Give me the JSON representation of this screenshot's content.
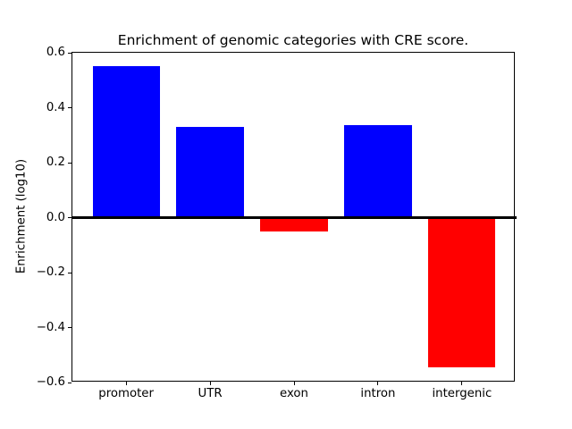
{
  "figure": {
    "background": "#ffffff"
  },
  "chart_data": {
    "type": "bar",
    "title": "Enrichment of genomic categories with CRE score.",
    "xlabel": "",
    "ylabel": "Enrichment (log10)",
    "categories": [
      "promoter",
      "UTR",
      "exon",
      "intron",
      "intergenic"
    ],
    "values": [
      0.55,
      0.33,
      -0.05,
      0.335,
      -0.545
    ],
    "bar_colors": [
      "#0000ff",
      "#0000ff",
      "#ff0000",
      "#0000ff",
      "#ff0000"
    ],
    "positive_color": "#0000ff",
    "negative_color": "#ff0000",
    "ylim": [
      -0.6,
      0.6
    ],
    "yticks": [
      0.6,
      0.4,
      0.2,
      0.0,
      -0.2,
      -0.4,
      -0.6
    ],
    "ytick_labels": [
      "0.6",
      "0.4",
      "0.2",
      "0.0",
      "−0.2",
      "−0.4",
      "−0.6"
    ],
    "bar_width_fraction": 0.8,
    "x_margin": 0.64,
    "grid": false,
    "legend": "none",
    "zero_line": true,
    "zero_line_color": "#000000",
    "axis_color": "#000000"
  }
}
